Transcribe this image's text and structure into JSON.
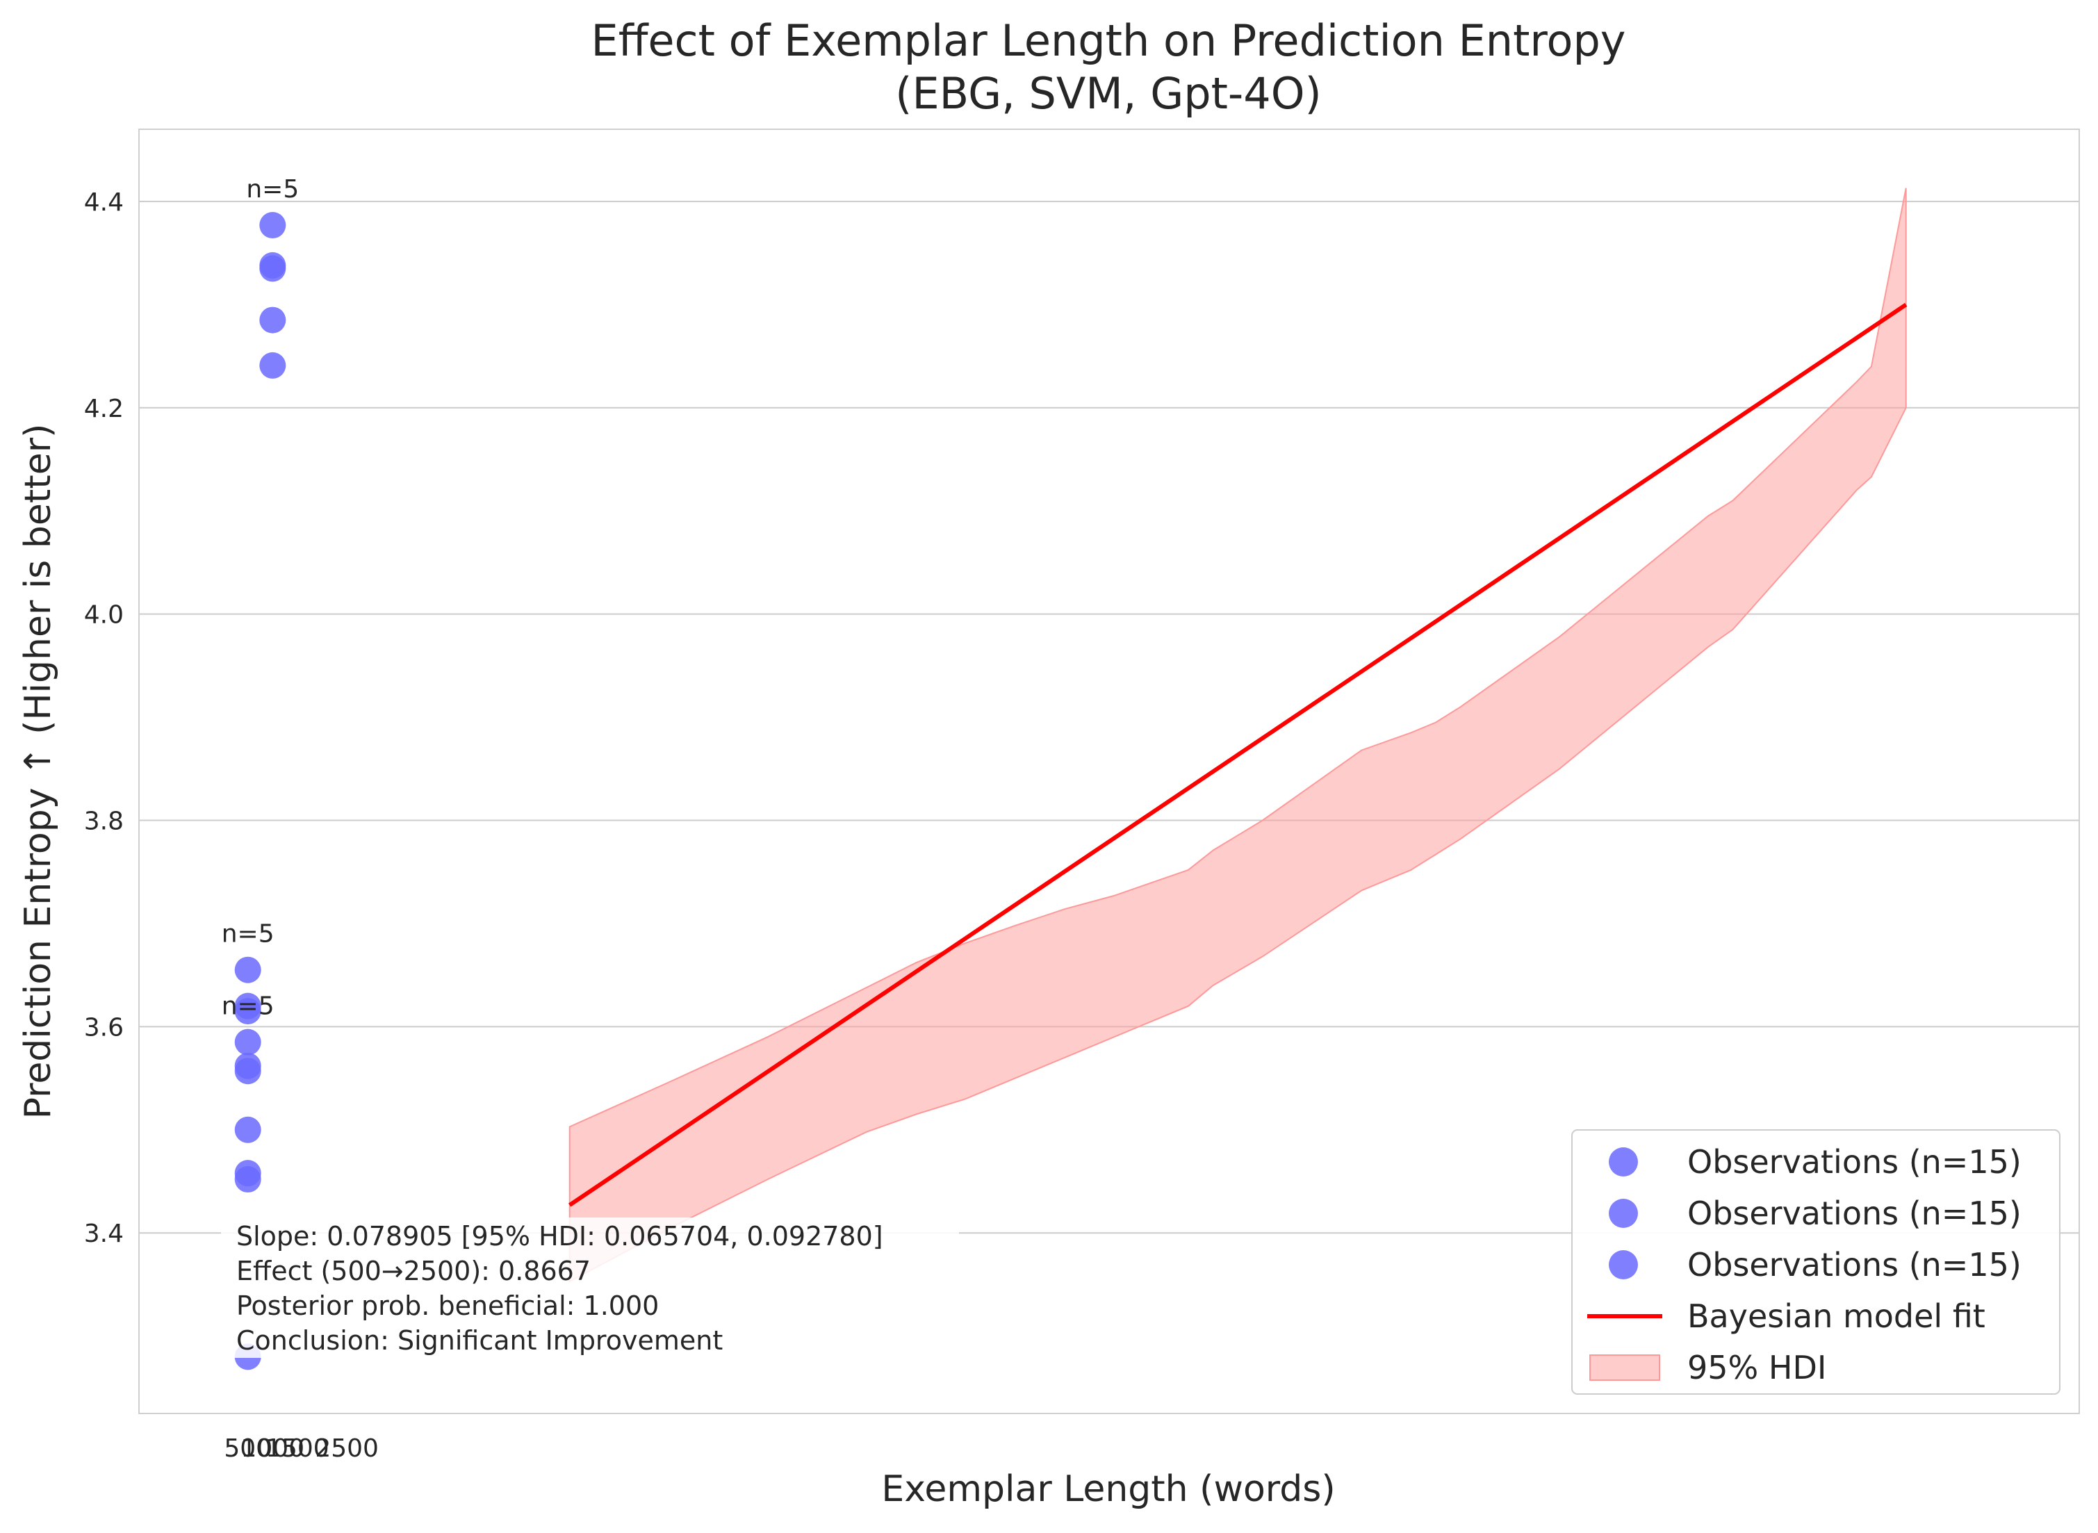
{
  "chart_data": {
    "type": "scatter",
    "title_line1": "Effect of Exemplar Length on Prediction Entropy",
    "title_line2": "(EBG, SVM, Gpt-4O)",
    "xlabel": "Exemplar Length (words)",
    "ylabel": "Prediction Entropy ↑ (Higher is better)",
    "ylim": [
      3.225,
      4.47
    ],
    "xlim": [
      -1700,
      37500
    ],
    "yticks": [
      3.4,
      3.6,
      3.8,
      4.0,
      4.2,
      4.4
    ],
    "ytick_labels": [
      "3.4",
      "3.6",
      "3.8",
      "4.0",
      "4.2",
      "4.4"
    ],
    "xticks": [
      500,
      1000,
      1500,
      2500
    ],
    "xtick_labels": [
      "500",
      "1000",
      "1500",
      "2500"
    ],
    "grid": true,
    "series": [
      {
        "name": "Observations (n=15)",
        "color": "#6a6aff",
        "x": [
          1000,
          1000,
          1000,
          1000,
          1000
        ],
        "y": [
          4.377,
          4.338,
          4.335,
          4.285,
          4.241
        ]
      },
      {
        "name": "Observations (n=15)",
        "color": "#6a6aff",
        "x": [
          500,
          500,
          500,
          500,
          500
        ],
        "y": [
          3.655,
          3.62,
          3.585,
          3.557,
          3.5
        ]
      },
      {
        "name": "Observations (n=15)",
        "color": "#6a6aff",
        "x": [
          500,
          500,
          500,
          500,
          500
        ],
        "y": [
          3.615,
          3.562,
          3.458,
          3.452,
          3.28
        ]
      }
    ],
    "group_labels": [
      {
        "text": "n=5",
        "x": 1000,
        "y": 4.377
      },
      {
        "text": "n=5",
        "x": 500,
        "y": 3.655
      },
      {
        "text": "n=5",
        "x": 500,
        "y": 3.585
      }
    ],
    "fit": {
      "name": "Bayesian model fit",
      "color": "#ff0000",
      "x": [
        7000,
        34000
      ],
      "y": [
        3.427,
        4.3
      ]
    },
    "hdi": {
      "name": "95% HDI",
      "color": "#ff9999",
      "x": [
        7000,
        9000,
        11000,
        13000,
        14000,
        15000,
        16000,
        17000,
        18000,
        19500,
        20000,
        21000,
        23000,
        24000,
        24500,
        25000,
        27000,
        30000,
        30500,
        33000,
        33300,
        34000
      ],
      "upper": [
        3.503,
        3.546,
        3.59,
        3.638,
        3.662,
        3.681,
        3.698,
        3.714,
        3.727,
        3.752,
        3.771,
        3.8,
        3.868,
        3.885,
        3.895,
        3.91,
        3.978,
        4.095,
        4.11,
        4.225,
        4.24,
        4.413
      ],
      "lower": [
        3.353,
        3.404,
        3.452,
        3.498,
        3.515,
        3.53,
        3.55,
        3.57,
        3.59,
        3.62,
        3.64,
        3.668,
        3.732,
        3.752,
        3.767,
        3.782,
        3.85,
        3.968,
        3.985,
        4.12,
        4.133,
        4.2
      ]
    },
    "annotation": [
      "Slope: 0.078905 [95% HDI: 0.065704, 0.092780]",
      "Effect (500→2500): 0.8667",
      "Posterior prob. beneficial: 1.000",
      "Conclusion: Significant Improvement"
    ],
    "legend": {
      "placement": "lower-right",
      "entries": [
        {
          "label": "Observations (n=15)",
          "kind": "marker",
          "color": "#6a6aff"
        },
        {
          "label": "Observations (n=15)",
          "kind": "marker",
          "color": "#6a6aff"
        },
        {
          "label": "Observations (n=15)",
          "kind": "marker",
          "color": "#6a6aff"
        },
        {
          "label": "Bayesian model fit",
          "kind": "line",
          "color": "#ff0000"
        },
        {
          "label": "95% HDI",
          "kind": "patch",
          "color": "#ff9999"
        }
      ]
    }
  }
}
